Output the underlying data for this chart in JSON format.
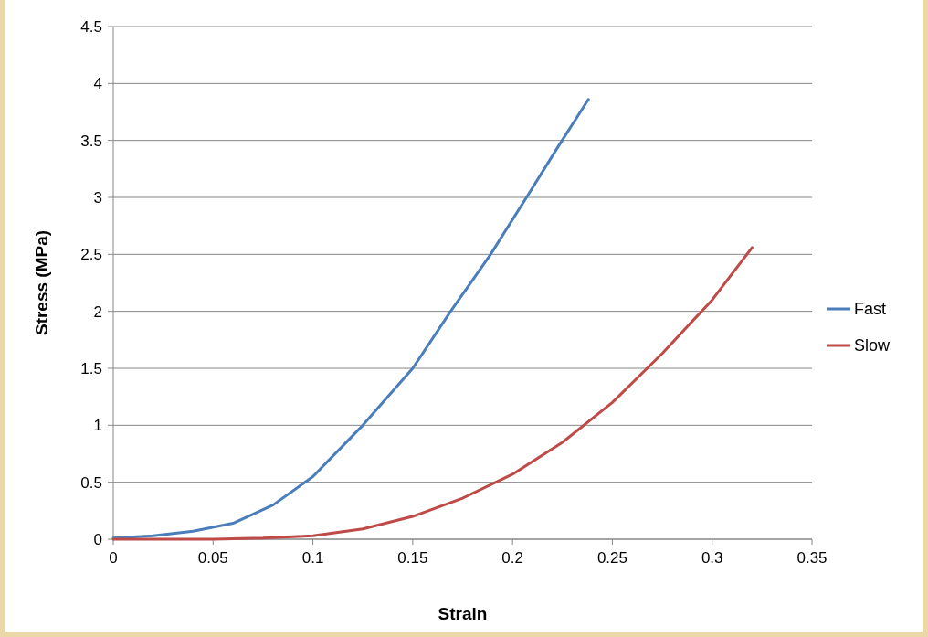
{
  "chart_data": {
    "type": "line",
    "xlabel": "Strain",
    "ylabel": "Stress (MPa)",
    "xlim": [
      0,
      0.35
    ],
    "xticks": [
      0,
      0.05,
      0.1,
      0.15,
      0.2,
      0.25,
      0.3,
      0.35
    ],
    "ylim": [
      0,
      4.5
    ],
    "yticks": [
      0,
      0.5,
      1,
      1.5,
      2,
      2.5,
      3,
      3.5,
      4,
      4.5
    ],
    "grid": "y",
    "legend": "right",
    "marker": "none",
    "line_style": "solid",
    "series": [
      {
        "name": "Fast",
        "color": "#4a7ebb",
        "x": [
          0,
          0.02,
          0.04,
          0.06,
          0.08,
          0.1,
          0.125,
          0.15,
          0.169,
          0.189,
          0.207,
          0.223,
          0.238
        ],
        "values": [
          0.01,
          0.03,
          0.07,
          0.14,
          0.3,
          0.55,
          1.0,
          1.5,
          2.0,
          2.5,
          3.0,
          3.45,
          3.86
        ]
      },
      {
        "name": "Slow",
        "color": "#be4b48",
        "x": [
          0,
          0.05,
          0.075,
          0.1,
          0.125,
          0.15,
          0.175,
          0.2,
          0.225,
          0.25,
          0.275,
          0.3,
          0.32
        ],
        "values": [
          0,
          0,
          0.01,
          0.03,
          0.09,
          0.2,
          0.36,
          0.57,
          0.85,
          1.2,
          1.63,
          2.1,
          2.56
        ]
      }
    ]
  }
}
